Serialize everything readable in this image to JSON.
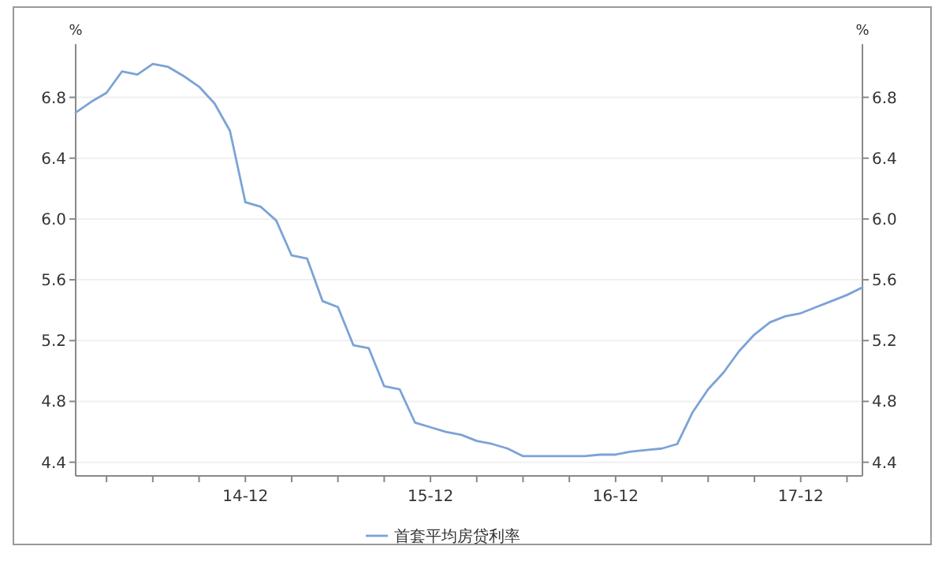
{
  "chart_data": {
    "type": "line",
    "ylabel": "%",
    "y2label": "%",
    "categories": [
      null,
      null,
      null,
      null,
      null,
      null,
      null,
      null,
      null,
      null,
      null,
      "14-12",
      null,
      null,
      null,
      null,
      null,
      null,
      null,
      null,
      null,
      null,
      null,
      "15-12",
      null,
      null,
      null,
      null,
      null,
      null,
      null,
      null,
      null,
      null,
      null,
      "16-12",
      null,
      null,
      null,
      null,
      null,
      null,
      null,
      null,
      null,
      null,
      null,
      "17-12",
      null,
      null,
      null,
      null
    ],
    "series": [
      {
        "name": "首套平均房贷利率",
        "color": "#7ba3d6",
        "values": [
          6.7,
          6.77,
          6.83,
          6.97,
          6.95,
          7.02,
          7.0,
          6.94,
          6.87,
          6.76,
          6.58,
          6.11,
          6.08,
          5.99,
          5.76,
          5.74,
          5.46,
          5.42,
          5.17,
          5.15,
          4.9,
          4.88,
          4.66,
          4.63,
          4.6,
          4.58,
          4.54,
          4.52,
          4.49,
          4.44,
          4.44,
          4.44,
          4.44,
          4.44,
          4.45,
          4.45,
          4.47,
          4.48,
          4.49,
          4.52,
          4.73,
          4.88,
          4.99,
          5.13,
          5.24,
          5.32,
          5.36,
          5.38,
          5.42,
          5.46,
          5.5,
          5.55
        ]
      }
    ],
    "ylim": [
      4.31,
      7.15
    ],
    "yticks": [
      4.4,
      4.8,
      5.2,
      5.6,
      {
        "value": 6,
        "label": "6.0"
      },
      6.4,
      6.8
    ],
    "y2lim": [
      4.31,
      7.15
    ],
    "y2ticks": [
      4.4,
      4.8,
      5.2,
      5.6,
      {
        "value": 6,
        "label": "6.0"
      },
      6.4,
      6.8
    ],
    "grid": "y",
    "legend": "bottom",
    "line_style": "solid",
    "marker": "none"
  }
}
